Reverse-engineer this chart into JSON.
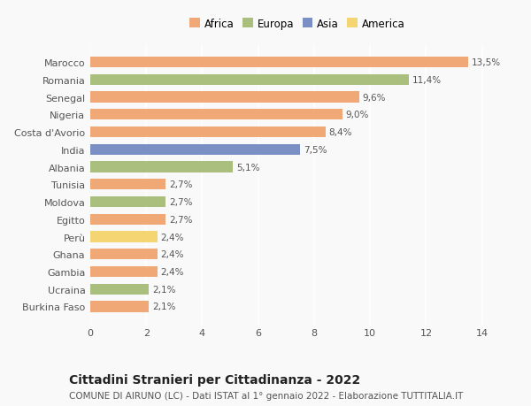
{
  "countries": [
    "Burkina Faso",
    "Ucraina",
    "Gambia",
    "Ghana",
    "Perù",
    "Egitto",
    "Moldova",
    "Tunisia",
    "Albania",
    "India",
    "Costa d'Avorio",
    "Nigeria",
    "Senegal",
    "Romania",
    "Marocco"
  ],
  "values": [
    2.1,
    2.1,
    2.4,
    2.4,
    2.4,
    2.7,
    2.7,
    2.7,
    5.1,
    7.5,
    8.4,
    9.0,
    9.6,
    11.4,
    13.5
  ],
  "continents": [
    "Africa",
    "Europa",
    "Africa",
    "Africa",
    "America",
    "Africa",
    "Europa",
    "Africa",
    "Europa",
    "Asia",
    "Africa",
    "Africa",
    "Africa",
    "Europa",
    "Africa"
  ],
  "continent_colors": {
    "Africa": "#F0A877",
    "Europa": "#AABF7E",
    "Asia": "#7A8FC4",
    "America": "#F5D472"
  },
  "label_texts": [
    "2,1%",
    "2,1%",
    "2,4%",
    "2,4%",
    "2,4%",
    "2,7%",
    "2,7%",
    "2,7%",
    "5,1%",
    "7,5%",
    "8,4%",
    "9,0%",
    "9,6%",
    "11,4%",
    "13,5%"
  ],
  "xlim": [
    0,
    14.8
  ],
  "xticks": [
    0,
    2,
    4,
    6,
    8,
    10,
    12,
    14
  ],
  "title": "Cittadini Stranieri per Cittadinanza - 2022",
  "subtitle": "COMUNE DI AIRUNO (LC) - Dati ISTAT al 1° gennaio 2022 - Elaborazione TUTTITALIA.IT",
  "legend_order": [
    "Africa",
    "Europa",
    "Asia",
    "America"
  ],
  "background_color": "#f9f9f9",
  "bar_height": 0.62,
  "title_fontsize": 10,
  "subtitle_fontsize": 7.5,
  "label_fontsize": 7.5,
  "tick_fontsize": 8,
  "legend_fontsize": 8.5
}
